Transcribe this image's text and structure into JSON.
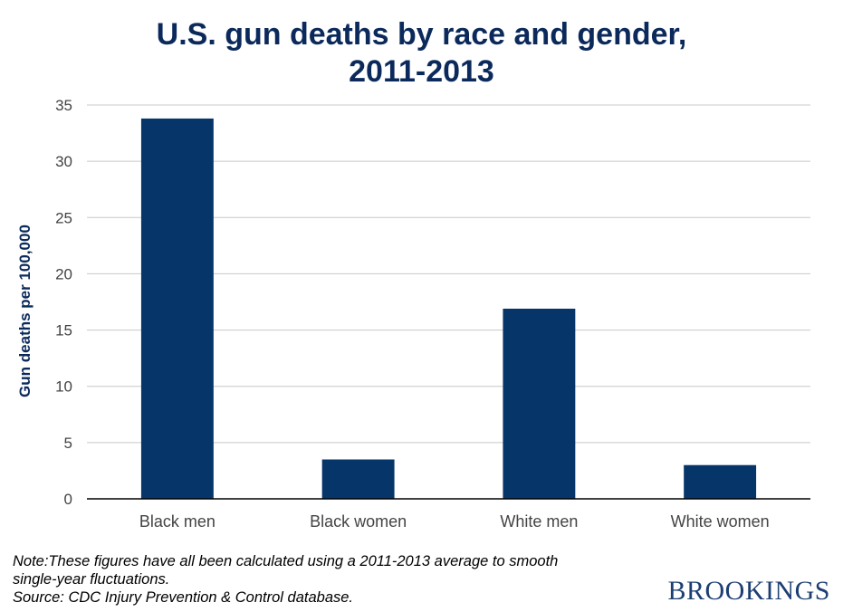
{
  "chart_data": {
    "type": "bar",
    "title": [
      "U.S. gun deaths by race and gender,",
      "2011-2013"
    ],
    "xlabel": "",
    "ylabel": "Gun deaths per 100,000",
    "categories": [
      "Black men",
      "Black women",
      "White men",
      "White women"
    ],
    "values": [
      33.8,
      3.5,
      16.9,
      3.0
    ],
    "ylim": [
      0,
      35
    ],
    "yticks": [
      0,
      5,
      10,
      15,
      20,
      25,
      30,
      35
    ],
    "grid": true,
    "bar_color": "#06356a"
  },
  "note": [
    "Note:These figures have all been calculated using a 2011-2013 average to smooth",
    "single-year fluctuations.",
    "Source: CDC Injury Prevention & Control database."
  ],
  "logo": "BROOKINGS"
}
